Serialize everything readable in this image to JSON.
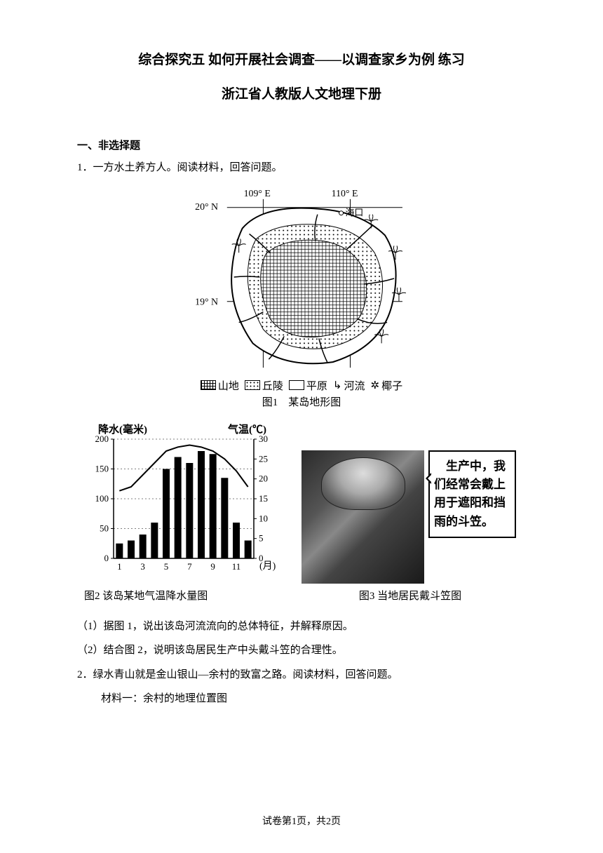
{
  "title": {
    "line1": "综合探究五 如何开展社会调查——以调查家乡为例 练习",
    "line2": "浙江省人教版人文地理下册"
  },
  "section_a": {
    "header": "一、非选择题",
    "q1_intro": "1．一方水土养方人。阅读材料，回答问题。"
  },
  "map": {
    "lon_labels": [
      "109° E",
      "110° E"
    ],
    "lat_labels": [
      "20° N",
      "19° N"
    ],
    "city_label": "海口",
    "legend": {
      "mountain": "山地",
      "hill": "丘陵",
      "plain": "平原",
      "river": "河流",
      "coconut": "椰子"
    },
    "caption": "图1　某岛地形图",
    "colors": {
      "line": "#000000",
      "bg": "#ffffff"
    }
  },
  "chart": {
    "y1_label": "降水(毫米)",
    "y2_label": "气温(℃)",
    "y1_ticks": [
      0,
      50,
      100,
      150,
      200
    ],
    "y2_ticks": [
      0,
      5,
      10,
      15,
      20,
      25,
      30
    ],
    "x_ticks": [
      1,
      3,
      5,
      7,
      9,
      11
    ],
    "x_axis_suffix": "(月)",
    "precip_values": [
      25,
      30,
      40,
      60,
      150,
      170,
      160,
      180,
      175,
      135,
      60,
      30
    ],
    "temp_values": [
      17,
      18,
      21,
      24,
      27,
      28,
      28.5,
      28,
      27,
      25,
      22,
      18
    ],
    "caption": "图2 该岛某地气温降水量图",
    "bar_color": "#000000",
    "line_color": "#000000",
    "grid_color": "#000000",
    "background": "#ffffff",
    "y1_max": 200,
    "y2_max": 30,
    "axis_fontsize": 15
  },
  "photo": {
    "speech_text": "　生产中，我们经常会戴上用于遮阳和挡雨的斗笠。",
    "caption": "图3 当地居民戴斗笠图"
  },
  "sub_questions": {
    "q1_1": "（1）据图 1，说出该岛河流流向的总体特征，并解释原因。",
    "q1_2": "（2）结合图 2，说明该岛居民生产中头戴斗笠的合理性。",
    "q2_intro": "2．绿水青山就是金山银山—余村的致富之路。阅读材料，回答问题。",
    "q2_material": "材料一：余村的地理位置图"
  },
  "footer": "试卷第1页，共2页"
}
